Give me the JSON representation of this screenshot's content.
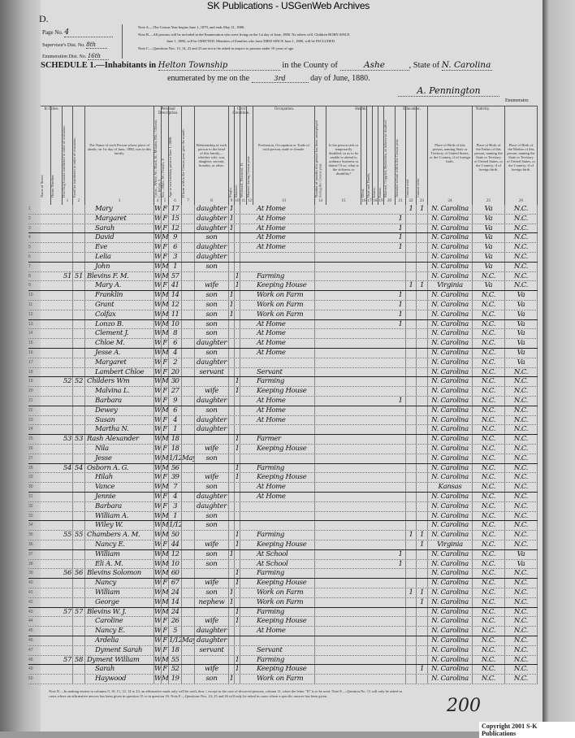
{
  "banner": "SK Publications - USGenWeb Archives",
  "corner": "D.",
  "header": {
    "page_label": "Page No.",
    "page_value": "4",
    "supervisor_label": "Supervisor's Dist. No.",
    "supervisor_value": "8th",
    "enumeration_label": "Enumeration Dist. No.",
    "enumeration_value": "16th",
    "note_a": "Note A.—The Census Year begins June 1, 1879, and ends May 31, 1880.",
    "note_b": "Note B.—All persons will be included in the Enumeration who were living on the 1st day of June, 1880. No others will. Children BORN SINCE",
    "note_b2": "June 1, 1880, will be OMITTED. Members of Families who have DIED SINCE June 1, 1880, will be INCLUDED.",
    "note_c": "Note C.—Questions Nos. 13, 14, 22 and 23 are not to be asked in respect to persons under 10 years of age.",
    "schedule": "SCHEDULE 1.—Inhabitants in",
    "township": "Helton Township",
    "county_label": "in the County of",
    "county": "Ashe",
    "state_label": ", State of",
    "state": "N. Carolina",
    "enumerated": "enumerated by me on the",
    "day": "3rd",
    "month_year": "day of June, 1880.",
    "signature": "A. Pennington",
    "enumerator": "Enumerator."
  },
  "groups": {
    "cities": "In Cities.",
    "personal": "Personal Description.",
    "civil": "Civil Condition.",
    "occupation": "Occupation.",
    "health": "Health.",
    "education": "Education.",
    "nativity": "Nativity."
  },
  "columns": [
    {
      "n": "",
      "t": "Name of Street."
    },
    {
      "n": "",
      "t": "House Number."
    },
    {
      "n": "1",
      "t": "Dwelling-houses numbered in order of visitation."
    },
    {
      "n": "2",
      "t": "Families numbered in order of visitation."
    },
    {
      "n": "3",
      "t": "The Name of each Person whose place of abode, on 1st day of June, 1880, was in this family."
    },
    {
      "n": "4",
      "t": "Color—White, W.; Black, B.; Mulatto, Mu.; Chinese, C.; Indian, I."
    },
    {
      "n": "5",
      "t": "Sex—Male, M.; Female, F."
    },
    {
      "n": "6",
      "t": "Age at last birthday prior to June 1, 1880."
    },
    {
      "n": "7",
      "t": "If born within the Census year, give the month."
    },
    {
      "n": "8",
      "t": "Relationship of each person to the head of this family—whether wife, son, daughter, servant, boarder, or other."
    },
    {
      "n": "9",
      "t": "Single,"
    },
    {
      "n": "10",
      "t": "Married,"
    },
    {
      "n": "11",
      "t": "Widowed, Divorced, D."
    },
    {
      "n": "12",
      "t": "Married during Census year."
    },
    {
      "n": "13",
      "t": "Profession, Occupation or Trade of each person, male or female."
    },
    {
      "n": "14",
      "t": "Number of months this person has been unemployed during the Census year."
    },
    {
      "n": "15",
      "t": "Is the person sick or temporarily disabled, so as to be unable to attend to ordinary business or duties? If so, what is the sickness or disability?"
    },
    {
      "n": "16",
      "t": "Blind,"
    },
    {
      "n": "17",
      "t": "Deaf and Dumb,"
    },
    {
      "n": "18",
      "t": "Idiotic,"
    },
    {
      "n": "19",
      "t": "Insane,"
    },
    {
      "n": "20",
      "t": "Maimed, Crippled, Bedridden, or otherwise disabled."
    },
    {
      "n": "21",
      "t": "Attended school within the Census year."
    },
    {
      "n": "22",
      "t": "Cannot read."
    },
    {
      "n": "23",
      "t": "Cannot write."
    },
    {
      "n": "24",
      "t": "Place of Birth of this person, naming State or Territory of United States, or the Country, if of foreign birth."
    },
    {
      "n": "25",
      "t": "Place of Birth of the Father of this person, naming the State or Territory of United States, or the Country, if of foreign birth."
    },
    {
      "n": "26",
      "t": "Place of Birth of the Mother of this person, naming the State or Territory of United States, or the Country, if of foreign birth."
    }
  ],
  "rows": [
    [
      "1",
      "",
      "",
      "Mary",
      "W",
      "F",
      "17",
      "",
      "daughter",
      "1",
      "",
      "At Home",
      "",
      "1",
      "1",
      "N. Carolina",
      "Va",
      "N.C."
    ],
    [
      "2",
      "",
      "",
      "Margaret",
      "W",
      "F",
      "15",
      "",
      "daughter",
      "1",
      "",
      "At Home",
      "1",
      "",
      "",
      "N. Carolina",
      "Va",
      "N.C."
    ],
    [
      "3",
      "",
      "",
      "Sarah",
      "W",
      "F",
      "12",
      "",
      "daughter",
      "1",
      "",
      "At Home",
      "1",
      "",
      "",
      "N. Carolina",
      "Va",
      "N.C."
    ],
    [
      "4",
      "",
      "",
      "David",
      "W",
      "M",
      "9",
      "",
      "son",
      "",
      "",
      "At Home",
      "1",
      "",
      "",
      "N. Carolina",
      "Va",
      "N.C."
    ],
    [
      "5",
      "",
      "",
      "Eve",
      "W",
      "F",
      "6",
      "",
      "daughter",
      "",
      "",
      "At Home",
      "1",
      "",
      "",
      "N. Carolina",
      "Va",
      "N.C."
    ],
    [
      "6",
      "",
      "",
      "Lelia",
      "W",
      "F",
      "3",
      "",
      "daughter",
      "",
      "",
      "",
      "",
      "",
      "",
      "N. Carolina",
      "Va",
      "N.C."
    ],
    [
      "7",
      "",
      "",
      "John",
      "W",
      "M",
      "1",
      "",
      "son",
      "",
      "",
      "",
      "",
      "",
      "",
      "N. Carolina",
      "Va",
      "N.C."
    ],
    [
      "8",
      "51",
      "51",
      "Blevins F. M.",
      "W",
      "M",
      "57",
      "",
      "",
      "",
      "1",
      "Farming",
      "",
      "",
      "",
      "N. Carolina",
      "N.C.",
      "N.C."
    ],
    [
      "9",
      "",
      "",
      "Mary A.",
      "W",
      "F",
      "41",
      "",
      "wife",
      "",
      "1",
      "Keeping House",
      "",
      "1",
      "1",
      "Virginia",
      "Va",
      "N.C."
    ],
    [
      "10",
      "",
      "",
      "Franklin",
      "W",
      "M",
      "14",
      "",
      "son",
      "1",
      "",
      "Work on Farm",
      "1",
      "",
      "",
      "N. Carolina",
      "N.C.",
      "Va"
    ],
    [
      "11",
      "",
      "",
      "Grant",
      "W",
      "M",
      "12",
      "",
      "son",
      "1",
      "",
      "Work on Farm",
      "1",
      "",
      "",
      "N. Carolina",
      "N.C.",
      "Va"
    ],
    [
      "12",
      "",
      "",
      "Colfax",
      "W",
      "M",
      "11",
      "",
      "son",
      "1",
      "",
      "Work on Farm",
      "1",
      "",
      "",
      "N. Carolina",
      "N.C.",
      "Va"
    ],
    [
      "13",
      "",
      "",
      "Lonzo B.",
      "W",
      "M",
      "10",
      "",
      "son",
      "",
      "",
      "At Home",
      "1",
      "",
      "",
      "N. Carolina",
      "N.C.",
      "Va"
    ],
    [
      "14",
      "",
      "",
      "Clement J.",
      "W",
      "M",
      "8",
      "",
      "son",
      "",
      "",
      "At Home",
      "",
      "",
      "",
      "N. Carolina",
      "N.C.",
      "Va"
    ],
    [
      "15",
      "",
      "",
      "Chloe M.",
      "W",
      "F",
      "6",
      "",
      "daughter",
      "",
      "",
      "At Home",
      "",
      "",
      "",
      "N. Carolina",
      "N.C.",
      "Va"
    ],
    [
      "16",
      "",
      "",
      "Jesse A.",
      "W",
      "M",
      "4",
      "",
      "son",
      "",
      "",
      "At Home",
      "",
      "",
      "",
      "N. Carolina",
      "N.C.",
      "Va"
    ],
    [
      "17",
      "",
      "",
      "Margaret",
      "W",
      "F",
      "2",
      "",
      "daughter",
      "",
      "",
      "",
      "",
      "",
      "",
      "N. Carolina",
      "N.C.",
      "Va"
    ],
    [
      "18",
      "",
      "",
      "Lambert Chloe",
      "W",
      "F",
      "20",
      "",
      "servant",
      "",
      "",
      "Servant",
      "",
      "",
      "",
      "N. Carolina",
      "N.C.",
      "N.C."
    ],
    [
      "19",
      "52",
      "52",
      "Childers Wm",
      "W",
      "M",
      "30",
      "",
      "",
      "",
      "1",
      "Farming",
      "",
      "",
      "",
      "N. Carolina",
      "N.C.",
      "N.C."
    ],
    [
      "20",
      "",
      "",
      "Malvina L.",
      "W",
      "F",
      "27",
      "",
      "wife",
      "",
      "1",
      "Keeping House",
      "",
      "",
      "",
      "N. Carolina",
      "N.C.",
      "N.C."
    ],
    [
      "21",
      "",
      "",
      "Barbara",
      "W",
      "F",
      "9",
      "",
      "daughter",
      "",
      "",
      "At Home",
      "1",
      "",
      "",
      "N. Carolina",
      "N.C.",
      "N.C."
    ],
    [
      "22",
      "",
      "",
      "Dewey",
      "W",
      "M",
      "6",
      "",
      "son",
      "",
      "",
      "At Home",
      "",
      "",
      "",
      "N. Carolina",
      "N.C.",
      "N.C."
    ],
    [
      "23",
      "",
      "",
      "Susan",
      "W",
      "F",
      "4",
      "",
      "daughter",
      "",
      "",
      "At Home",
      "",
      "",
      "",
      "N. Carolina",
      "N.C.",
      "N.C."
    ],
    [
      "24",
      "",
      "",
      "Martha N.",
      "W",
      "F",
      "1",
      "",
      "daughter",
      "",
      "",
      "",
      "",
      "",
      "",
      "N. Carolina",
      "N.C.",
      "N.C."
    ],
    [
      "25",
      "53",
      "53",
      "Rash Alexander",
      "W",
      "M",
      "18",
      "",
      "",
      "",
      "1",
      "Farmer",
      "",
      "",
      "",
      "N. Carolina",
      "N.C.",
      "N.C."
    ],
    [
      "26",
      "",
      "",
      "Nila",
      "W",
      "F",
      "18",
      "",
      "wife",
      "",
      "1",
      "Keeping House",
      "",
      "",
      "",
      "N. Carolina",
      "N.C.",
      "N.C."
    ],
    [
      "27",
      "",
      "",
      "Jesse",
      "W",
      "M",
      "1/12",
      "May",
      "son",
      "",
      "",
      "",
      "",
      "",
      "",
      "N. Carolina",
      "N.C.",
      "N.C."
    ],
    [
      "28",
      "54",
      "54",
      "Osborn A. G.",
      "W",
      "M",
      "56",
      "",
      "",
      "",
      "1",
      "Farming",
      "",
      "",
      "",
      "N. Carolina",
      "N.C.",
      "N.C."
    ],
    [
      "29",
      "",
      "",
      "Hilah",
      "W",
      "F",
      "39",
      "",
      "wife",
      "",
      "1",
      "Keeping House",
      "",
      "",
      "",
      "N. Carolina",
      "N.C.",
      "N.C."
    ],
    [
      "30",
      "",
      "",
      "Vance",
      "W",
      "M",
      "7",
      "",
      "son",
      "",
      "",
      "At Home",
      "",
      "",
      "",
      "Kansas",
      "N.C.",
      "N.C."
    ],
    [
      "31",
      "",
      "",
      "Jennie",
      "W",
      "F",
      "4",
      "",
      "daughter",
      "",
      "",
      "At Home",
      "",
      "",
      "",
      "N. Carolina",
      "N.C.",
      "N.C."
    ],
    [
      "32",
      "",
      "",
      "Barbara",
      "W",
      "F",
      "3",
      "",
      "daughter",
      "",
      "",
      "",
      "",
      "",
      "",
      "N. Carolina",
      "N.C.",
      "N.C."
    ],
    [
      "33",
      "",
      "",
      "William A.",
      "W",
      "M",
      "1",
      "",
      "son",
      "",
      "",
      "",
      "",
      "",
      "",
      "N. Carolina",
      "N.C.",
      "N.C."
    ],
    [
      "34",
      "",
      "",
      "Wiley W.",
      "W",
      "M",
      "1/12",
      "",
      "son",
      "",
      "",
      "",
      "",
      "",
      "",
      "N. Carolina",
      "N.C.",
      "N.C."
    ],
    [
      "35",
      "55",
      "55",
      "Chambers A. M.",
      "W",
      "M",
      "50",
      "",
      "",
      "",
      "1",
      "Farming",
      "",
      "1",
      "1",
      "N. Carolina",
      "N.C.",
      "N.C."
    ],
    [
      "36",
      "",
      "",
      "Nancy E.",
      "W",
      "F",
      "44",
      "",
      "wife",
      "",
      "1",
      "Keeping House",
      "",
      "",
      "1",
      "Virginia",
      "N.C.",
      "N.C."
    ],
    [
      "37",
      "",
      "",
      "William",
      "W",
      "M",
      "12",
      "",
      "son",
      "1",
      "",
      "At School",
      "1",
      "",
      "",
      "N. Carolina",
      "N.C.",
      "Va"
    ],
    [
      "38",
      "",
      "",
      "Eli A. M.",
      "W",
      "M",
      "10",
      "",
      "son",
      "",
      "",
      "At School",
      "1",
      "",
      "",
      "N. Carolina",
      "N.C.",
      "Va"
    ],
    [
      "39",
      "56",
      "56",
      "Blevins Solomon",
      "W",
      "M",
      "60",
      "",
      "",
      "",
      "1",
      "Farming",
      "",
      "",
      "",
      "N. Carolina",
      "N.C.",
      "N.C."
    ],
    [
      "40",
      "",
      "",
      "Nancy",
      "W",
      "F",
      "67",
      "",
      "wife",
      "",
      "1",
      "Keeping House",
      "",
      "",
      "",
      "N. Carolina",
      "N.C.",
      "N.C."
    ],
    [
      "41",
      "",
      "",
      "William",
      "W",
      "M",
      "24",
      "",
      "son",
      "1",
      "",
      "Work on Farm",
      "",
      "1",
      "1",
      "N. Carolina",
      "N.C.",
      "N.C."
    ],
    [
      "42",
      "",
      "",
      "George",
      "W",
      "M",
      "14",
      "",
      "nephew",
      "1",
      "",
      "Work on Farm",
      "",
      "",
      "1",
      "N. Carolina",
      "N.C.",
      "N.C."
    ],
    [
      "43",
      "57",
      "57",
      "Blevins W. J.",
      "W",
      "M",
      "24",
      "",
      "",
      "",
      "1",
      "Farming",
      "",
      "",
      "",
      "N. Carolina",
      "N.C.",
      "N.C."
    ],
    [
      "44",
      "",
      "",
      "Caroline",
      "W",
      "F",
      "26",
      "",
      "wife",
      "",
      "1",
      "Keeping House",
      "",
      "",
      "",
      "N. Carolina",
      "N.C.",
      "N.C."
    ],
    [
      "45",
      "",
      "",
      "Nancy E.",
      "W",
      "F",
      "5",
      "",
      "daughter",
      "",
      "",
      "At Home",
      "",
      "",
      "",
      "N. Carolina",
      "N.C.",
      "N.C."
    ],
    [
      "46",
      "",
      "",
      "Ardelia",
      "W",
      "F",
      "1/12",
      "May",
      "daughter",
      "",
      "",
      "",
      "",
      "",
      "",
      "N. Carolina",
      "N.C.",
      "N.C."
    ],
    [
      "47",
      "",
      "",
      "Dyment Sarah",
      "W",
      "F",
      "18",
      "",
      "servant",
      "",
      "",
      "Servant",
      "",
      "",
      "",
      "N. Carolina",
      "N.C.",
      "N.C."
    ],
    [
      "48",
      "57",
      "58",
      "Dyment William",
      "W",
      "M",
      "55",
      "",
      "",
      "",
      "1",
      "Farming",
      "",
      "",
      "",
      "N. Carolina",
      "N.C.",
      "N.C."
    ],
    [
      "49",
      "",
      "",
      "Sarah",
      "W",
      "F",
      "52",
      "",
      "wife",
      "",
      "1",
      "Keeping House",
      "",
      "",
      "1",
      "N. Carolina",
      "N.C.",
      "N.C."
    ],
    [
      "50",
      "",
      "",
      "Haywood",
      "W",
      "M",
      "19",
      "",
      "son",
      "1",
      "",
      "Work on Farm",
      "",
      "",
      "",
      "N. Carolina",
      "N.C.",
      "N.C."
    ]
  ],
  "footer": {
    "notes": "Note D.—In making entries in columns 9, 10, 11, 12, 14 to 23, an affirmative mark only will be used, thus /, except in the case of divorced persons, column 11, when the letter \"D\" is to be used. Note E.—Question No. 13 will only be asked in cases where an affirmative answer has been given in question 15 or in question 16. Note F.—Questions Nos. 24, 25 and 26 will only be asked in cases where a specific answer has been given.",
    "page_mark": "200",
    "copyright": "Copyright 2001 S-K Publications"
  }
}
